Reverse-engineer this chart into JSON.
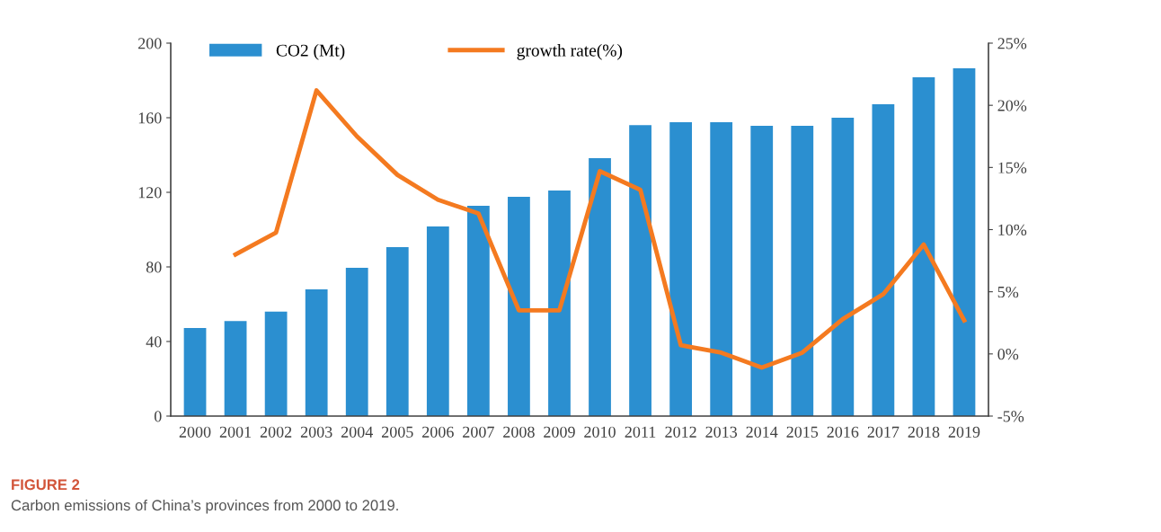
{
  "chart_data": {
    "type": "bar",
    "categories": [
      "2000",
      "2001",
      "2002",
      "2003",
      "2004",
      "2005",
      "2006",
      "2007",
      "2008",
      "2009",
      "2010",
      "2011",
      "2012",
      "2013",
      "2014",
      "2015",
      "2016",
      "2017",
      "2018",
      "2019"
    ],
    "series": [
      {
        "name": "CO2 (Mt)",
        "color": "#2b8fd0",
        "values": [
          47.2,
          51,
          56,
          68,
          79.5,
          90.6,
          101.7,
          112.8,
          117.6,
          121,
          138.3,
          156,
          157.6,
          157.6,
          155.7,
          155.7,
          160,
          167.2,
          181.7,
          186.5
        ]
      },
      {
        "name": "growth rate(%)",
        "type": "line",
        "axis": "y2",
        "color": "#f47a20",
        "values": [
          null,
          8.0,
          9.75,
          21.2,
          17.5,
          14.4,
          12.4,
          11.3,
          3.5,
          3.5,
          14.7,
          13.2,
          0.7,
          0.1,
          -1.1,
          0.1,
          2.8,
          4.8,
          8.8,
          2.7
        ]
      }
    ],
    "ylim": [
      0,
      200
    ],
    "yticks": [
      0,
      40,
      80,
      120,
      160,
      200
    ],
    "y2lim": [
      -5,
      25
    ],
    "y2ticks": [
      {
        "value": -5,
        "label": "-5%"
      },
      {
        "value": 0,
        "label": "0%"
      },
      {
        "value": 5,
        "label": "5%"
      },
      {
        "value": 10,
        "label": "10%"
      },
      {
        "value": 15,
        "label": "15%"
      },
      {
        "value": 20,
        "label": "20%"
      },
      {
        "value": 25,
        "label": "25%"
      }
    ],
    "legend": "top",
    "grid": false,
    "marker": "none",
    "line_style": "solid",
    "annotations": [
      "FIGURE 2",
      "Carbon emissions of China’s provinces from 2000 to 2019."
    ]
  }
}
